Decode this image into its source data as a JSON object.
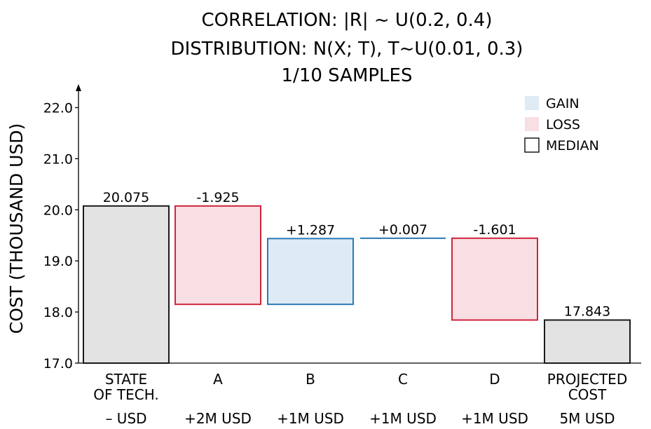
{
  "chart_data": {
    "type": "waterfall",
    "title": [
      "CORRELATION:  |R| ~ U(0.2, 0.4)",
      "DISTRIBUTION:  N(X; T),  T~U(0.01, 0.3)",
      "1/10 SAMPLES"
    ],
    "ylabel": "COST (THOUSAND USD)",
    "ylim": [
      17.0,
      22.4
    ],
    "yticks": [
      "17.0",
      "18.0",
      "19.0",
      "20.0",
      "21.0",
      "22.0"
    ],
    "categories": [
      {
        "name": [
          "STATE",
          "OF TECH."
        ],
        "sub": "– USD"
      },
      {
        "name": [
          "A"
        ],
        "sub": "+2M USD"
      },
      {
        "name": [
          "B"
        ],
        "sub": "+1M USD"
      },
      {
        "name": [
          "C"
        ],
        "sub": "+1M USD"
      },
      {
        "name": [
          "D"
        ],
        "sub": "+1M USD"
      },
      {
        "name": [
          "PROJECTED",
          "COST"
        ],
        "sub": "5M USD"
      }
    ],
    "bars": [
      {
        "kind": "median",
        "start": 17.0,
        "end": 20.075,
        "label": "20.075"
      },
      {
        "kind": "loss",
        "start": 20.075,
        "end": 18.15,
        "label": "-1.925"
      },
      {
        "kind": "gain",
        "start": 18.15,
        "end": 19.437,
        "label": "+1.287"
      },
      {
        "kind": "gain",
        "start": 19.437,
        "end": 19.444,
        "label": "+0.007"
      },
      {
        "kind": "loss",
        "start": 19.444,
        "end": 17.843,
        "label": "-1.601"
      },
      {
        "kind": "median",
        "start": 17.0,
        "end": 17.843,
        "label": "17.843"
      }
    ],
    "legend": {
      "placement": "top-right",
      "items": [
        {
          "kind": "gain",
          "label": "GAIN"
        },
        {
          "kind": "loss",
          "label": "LOSS"
        },
        {
          "kind": "median",
          "label": "MEDIAN"
        }
      ]
    },
    "colors": {
      "gain_fill": "#deebf5",
      "gain_edge": "#2a79b4",
      "loss_fill": "#f8dfe4",
      "loss_edge": "#d0243c",
      "median_fill": "#e3e3e3",
      "median_edge": "#1a1a1a"
    }
  }
}
